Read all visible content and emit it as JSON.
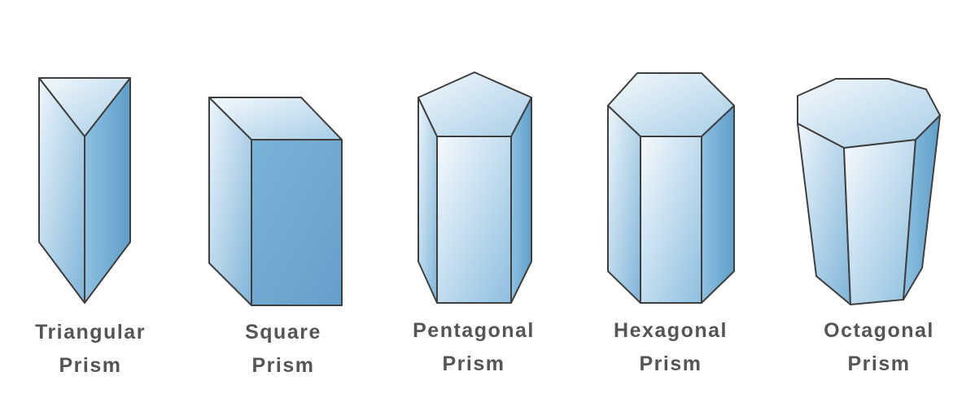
{
  "prisms": [
    {
      "line1": "Triangular",
      "line2": "Prism"
    },
    {
      "line1": "Square",
      "line2": "Prism"
    },
    {
      "line1": "Pentagonal",
      "line2": "Prism"
    },
    {
      "line1": "Hexagonal",
      "line2": "Prism"
    },
    {
      "line1": "Octagonal",
      "line2": "Prism"
    }
  ],
  "colors": {
    "edge": "#3f3f3f",
    "light": "#f2f8fc",
    "mid": "#a9cfe7",
    "dark": "#6aa6cf",
    "label": "#555555"
  }
}
